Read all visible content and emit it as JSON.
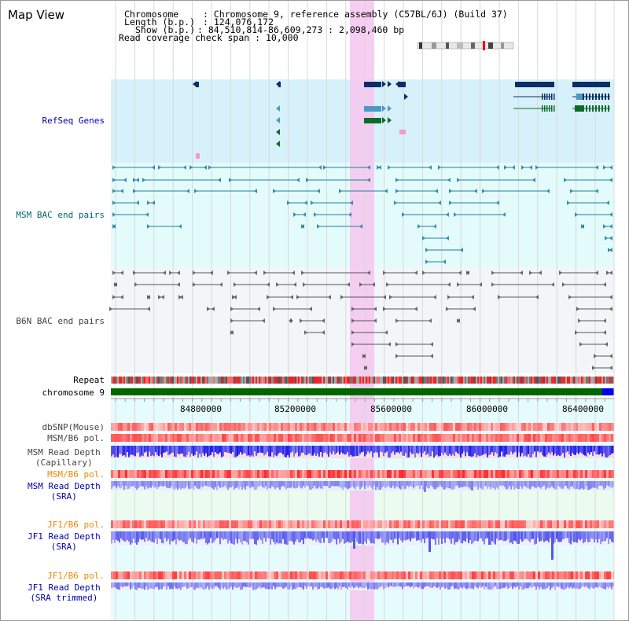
{
  "title": "Map View",
  "info": {
    "chromosome_label": "Chromosome",
    "chromosome_value": "Chromosome 9, reference assembly (C57BL/6J) (Build 37)",
    "length_label": "Length (b.p.)",
    "length_value": "124,076,172",
    "show_label": "Show (b.p.)",
    "show_value": "84,510,814-86,609,273 : 2,098,460 bp",
    "coverage_label": "Read coverage check span",
    "coverage_value": "10,000"
  },
  "tracks": {
    "refseq": "RefSeq Genes",
    "msm_bac": "MSM BAC end pairs",
    "b6n_bac": "B6N BAC end pairs",
    "repeat": "Repeat",
    "chromosome": "chromosome 9",
    "dbsnp": "dbSNP(Mouse)",
    "msm_b6_pol_1": "MSM/B6 pol.",
    "msm_read_depth_cap_1": "MSM Read Depth",
    "msm_read_depth_cap_2": "(Capillary)",
    "msm_b6_pol_2": "MSM/B6 pol.",
    "msm_read_depth_sra_1": "MSM Read Depth",
    "msm_read_depth_sra_2": "(SRA)",
    "jf1_b6_pol_1": "JF1/B6 pol.",
    "jf1_read_depth_sra_1": "JF1 Read Depth",
    "jf1_read_depth_sra_2": "(SRA)",
    "jf1_b6_pol_2": "JF1/B6 pol.",
    "jf1_read_depth_trim_1": "JF1 Read Depth",
    "jf1_read_depth_trim_2": "(SRA trimmed)"
  },
  "axis_ticks": [
    "84800000",
    "85200000",
    "85600000",
    "86000000",
    "86400000"
  ],
  "colors": {
    "refseq_bg": "#d7f1fb",
    "msm_bg": "#e3fbfb",
    "b6n_bg": "#f3f6f9",
    "highlight": "#f5c9f0",
    "chromosome": "#006600",
    "chromosome_end": "#0000ee",
    "label_blue": "#0000aa",
    "label_teal": "#006677",
    "label_orange": "#ee8800",
    "label_gray": "#444444"
  }
}
